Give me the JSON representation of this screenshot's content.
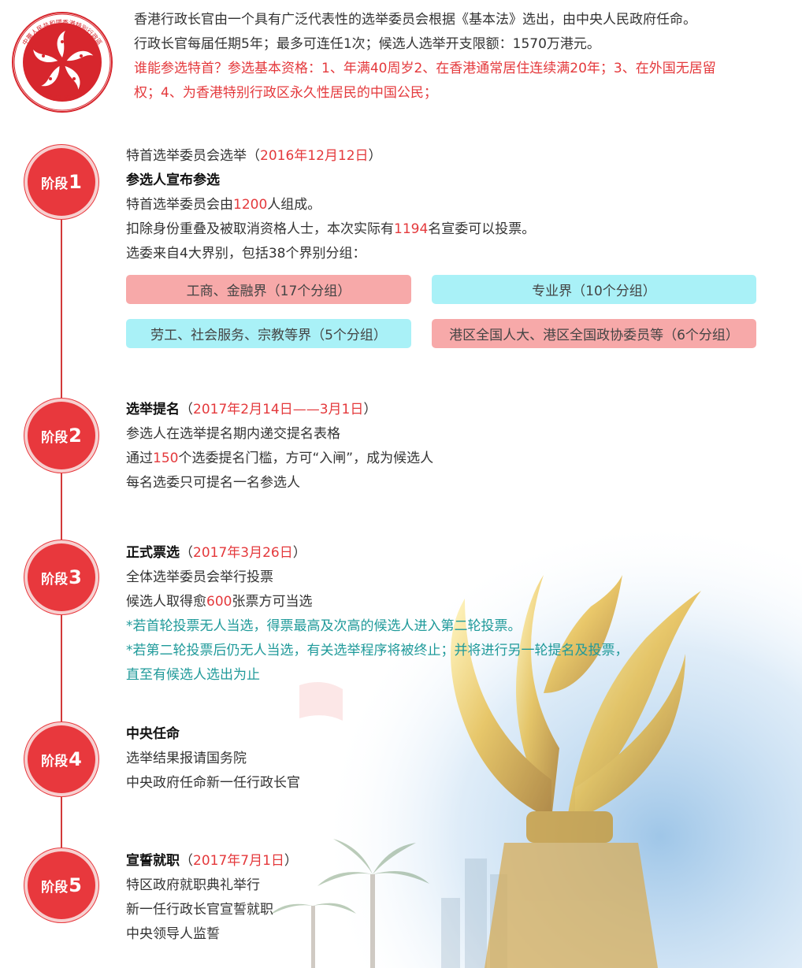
{
  "emblem": {
    "top_text": "中華人民共和國香港特別行政區",
    "bottom_text": "HONG KONG"
  },
  "intro": {
    "line1": "香港行政长官由一个具有广泛代表性的选举委员会根据《基本法》选出，由中央人民政府任命。",
    "line2": "行政长官每届任期5年；最多可连任1次；候选人选举开支限额：1570万港元。",
    "line3": "谁能参选特首？参选基本资格：1、年满40周岁2、在香港通常居住连续满20年；3、在外国无居留",
    "line4": "权；4、为香港特别行政区永久性居民的中国公民；"
  },
  "badges": [
    {
      "prefix": "阶段",
      "num": "1"
    },
    {
      "prefix": "阶段",
      "num": "2"
    },
    {
      "prefix": "阶段",
      "num": "3"
    },
    {
      "prefix": "阶段",
      "num": "4"
    },
    {
      "prefix": "阶段",
      "num": "5"
    }
  ],
  "stage1": {
    "heading_pre": "特首选举委员会选举（",
    "heading_date": "2016年12月12日",
    "heading_post": "）",
    "title": "参选人宣布参选",
    "l1_pre": "特首选举委员会由",
    "l1_num": "1200",
    "l1_post": "人组成。",
    "l2_pre": "扣除身份重叠及被取消资格人士，本次实际有",
    "l2_num": "1194",
    "l2_post": "名宣委可以投票。",
    "l3": "选委来自4大界别，包括38个界别分组：",
    "sectors": [
      "工商、金融界（17个分组）",
      "专业界（10个分组）",
      "劳工、社会服务、宗教等界（5个分组）",
      "港区全国人大、港区全国政协委员等（6个分组）"
    ],
    "colors": {
      "pink": "#f7a9a9",
      "cyan": "#a9f1f7"
    }
  },
  "stage2": {
    "title": "选举提名",
    "date_pre": "（",
    "date": "2017年2月14日——3月1日",
    "date_post": "）",
    "l1": "参选人在选举提名期内递交提名表格",
    "l2_pre": "通过",
    "l2_num": "150",
    "l2_post": "个选委提名门槛，方可“入闸”，成为候选人",
    "l3": "每名选委只可提名一名参选人"
  },
  "stage3": {
    "title": "正式票选",
    "date_pre": "（",
    "date": "2017年3月26日",
    "date_post": "）",
    "l1": "全体选举委员会举行投票",
    "l2_pre": "候选人取得愈",
    "l2_num": "600",
    "l2_post": "张票方可当选",
    "n1": "*若首轮投票无人当选，得票最高及次高的候选人进入第二轮投票。",
    "n2": "*若第二轮投票后仍无人当选，有关选举程序将被终止；并将进行另一轮提名及投票，",
    "n3": "直至有候选人选出为止"
  },
  "stage4": {
    "title": "中央任命",
    "l1": "选举结果报请国务院",
    "l2": "中央政府任命新一任行政长官"
  },
  "stage5": {
    "title": "宣誓就职",
    "date_pre": "（",
    "date": "2017年7月1日",
    "date_post": "）",
    "l1": "特区政府就职典礼举行",
    "l2": "新一任行政长官宣誓就职",
    "l3": "中央领导人监誓"
  },
  "theme": {
    "accent": "#e8383d",
    "highlight": "#e4393c",
    "note": "#1f9a9a"
  }
}
